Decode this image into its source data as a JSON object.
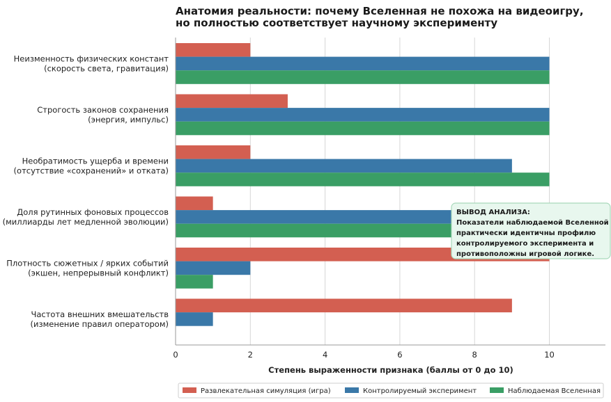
{
  "chart_data": {
    "type": "bar",
    "orientation": "horizontal",
    "title_lines": [
      "Анатомия реальности: почему Вселенная не похожа на видеоигру,",
      "но полностью соответствует научному эксперименту"
    ],
    "categories": [
      [
        "Неизменность физических констант",
        "(скорость света, гравитация)"
      ],
      [
        "Строгость законов сохранения",
        "(энергия, импульс)"
      ],
      [
        "Необратимость ущерба и времени",
        "(отсутствие «сохранений» и отката)"
      ],
      [
        "Доля рутинных фоновых процессов",
        "(миллиарды лет медленной эволюции)"
      ],
      [
        "Плотность сюжетных / ярких событий",
        "(экшен, непрерывный конфликт)"
      ],
      [
        "Частота внешних вмешательств",
        "(изменение правил оператором)"
      ]
    ],
    "series": [
      {
        "name": "Развлекательная симуляция (игра)",
        "color": "#d35f51",
        "values": [
          2,
          3,
          2,
          1,
          10,
          9
        ]
      },
      {
        "name": "Контролируемый эксперимент",
        "color": "#3a78a8",
        "values": [
          10,
          10,
          9,
          10,
          2,
          1
        ]
      },
      {
        "name": "Наблюдаемая Вселенная",
        "color": "#3a9e65",
        "values": [
          10,
          10,
          10,
          10,
          1,
          0
        ]
      }
    ],
    "xlabel": "Степень выраженности признака (баллы от 0 до 10)",
    "xticks": [
      0,
      2,
      4,
      6,
      8,
      10
    ],
    "xlim": [
      0,
      11.5
    ],
    "grid": "vertical",
    "legend_position": "bottom",
    "annotation": {
      "lines": [
        "ВЫВОД АНАЛИЗА:",
        "Показатели наблюдаемой Вселенной",
        "практически идентичны профилю",
        "контролируемого эксперимента и",
        "противоположны игровой логике."
      ],
      "fill": "#e8f7ee",
      "border": "#a9d9bb"
    }
  }
}
